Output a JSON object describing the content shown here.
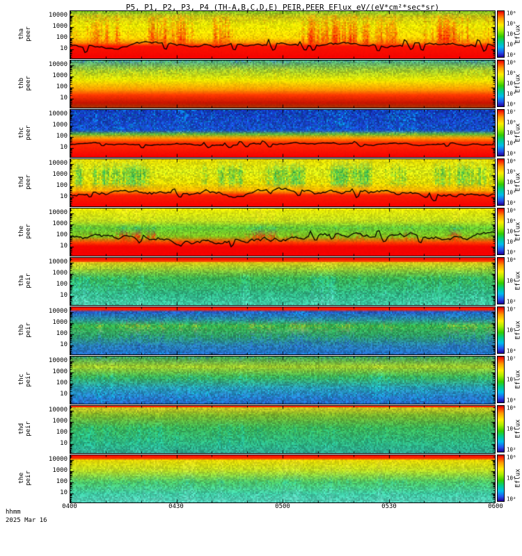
{
  "title": "P5, P1, P2, P3, P4 (TH-A,B,C,D,E) PEIR,PEER EFlux eV/(eV*cm²*sec*sr)",
  "colorbar_label": "Eflux",
  "yaxis": {
    "ticks": [
      "10000",
      "1000",
      "100",
      "10"
    ]
  },
  "xaxis": {
    "label": "hhmm",
    "date": "2025 Mar 16",
    "ticks": [
      "0400",
      "0430",
      "0500",
      "0530",
      "0600"
    ]
  },
  "panels": [
    {
      "probe": "tha",
      "instrument": "peer",
      "cb_ticks": [
        "10⁶",
        "10⁵",
        "10⁴",
        "10³",
        "10²"
      ],
      "render": {
        "stops": [
          [
            0.0,
            "#7fbf1f",
            "#d9e864",
            0.55,
            0.25
          ],
          [
            0.1,
            "#c9c914",
            "#ff7a00",
            0.45,
            0.35
          ],
          [
            0.3,
            "#ebeb00",
            "#ff3c00",
            0.3,
            0.55
          ],
          [
            0.55,
            "#ffd900",
            "#ff2000",
            0.35,
            0.85
          ],
          [
            0.66,
            "#ff8c00",
            "#ff0f00",
            0.28,
            0.7
          ],
          [
            0.72,
            "#fa1400",
            "#e00000",
            0.06,
            0.0
          ],
          [
            1.0,
            "#f50000",
            "#d90000",
            0.05,
            0.0
          ]
        ],
        "line": {
          "f": 0.72,
          "amp": 0.8,
          "spk": 0.13
        }
      }
    },
    {
      "probe": "thb",
      "instrument": "peer",
      "cb_ticks": [
        "10⁶",
        "10⁵",
        "10⁴",
        "10³",
        "10²"
      ],
      "render": {
        "stops": [
          [
            0.0,
            "#4faf78",
            "#2b66dd",
            0.6,
            0.25
          ],
          [
            0.2,
            "#9cc92e",
            "#ffe800",
            0.5,
            0.25
          ],
          [
            0.4,
            "#ebeb00",
            "#ffc800",
            0.22,
            0.12
          ],
          [
            0.6,
            "#ff9e00",
            "#ff5a00",
            0.16,
            0.1
          ],
          [
            0.72,
            "#ff3700",
            "#cc1400",
            0.1,
            0.0
          ],
          [
            0.88,
            "#c81400",
            "#961000",
            0.1,
            0.0
          ],
          [
            1.0,
            "#a03c00",
            "#6e2d00",
            0.16,
            0.0
          ]
        ]
      }
    },
    {
      "probe": "thc",
      "instrument": "peer",
      "cb_ticks": [
        "10⁷",
        "10⁶",
        "10⁵",
        "10⁴",
        "10³"
      ],
      "render": {
        "stops": [
          [
            0.0,
            "#1433b4",
            "#00c3ff",
            0.62,
            0.22
          ],
          [
            0.42,
            "#1946c8",
            "#00b4e6",
            0.62,
            0.22
          ],
          [
            0.5,
            "#55b43c",
            "#ffe600",
            0.42,
            0.22
          ],
          [
            0.58,
            "#ff9b00",
            "#ffcd00",
            0.2,
            0.12
          ],
          [
            0.68,
            "#ff2d00",
            "#e61400",
            0.08,
            0.0
          ],
          [
            1.0,
            "#f50000",
            "#d90000",
            0.05,
            0.0
          ]
        ],
        "line": {
          "f": 0.73,
          "amp": 0.45,
          "spk": 0.06
        }
      }
    },
    {
      "probe": "thd",
      "instrument": "peer",
      "cb_ticks": [
        "10⁶",
        "10⁵",
        "10⁴",
        "10³",
        "10²"
      ],
      "render": {
        "stops": [
          [
            0.0,
            "#e6da00",
            "#cdeb46",
            0.3,
            0.22
          ],
          [
            0.25,
            "#dceb14",
            "#2fb450",
            0.45,
            0.75
          ],
          [
            0.5,
            "#e6da00",
            "#41c85f",
            0.4,
            0.7
          ],
          [
            0.65,
            "#ffb900",
            "#ff6400",
            0.26,
            0.32
          ],
          [
            0.75,
            "#fa1e00",
            "#e60000",
            0.06,
            0.0
          ],
          [
            1.0,
            "#f50000",
            "#d90000",
            0.05,
            0.0
          ]
        ],
        "line": {
          "f": 0.72,
          "amp": 1.2,
          "spk": 0.1
        }
      }
    },
    {
      "probe": "the",
      "instrument": "peer",
      "cb_ticks": [
        "10⁶",
        "10⁵",
        "10⁴",
        "10³",
        "10²"
      ],
      "render": {
        "stops": [
          [
            0.0,
            "#ebeb00",
            "#ffe95f",
            0.26,
            0.16
          ],
          [
            0.25,
            "#bcdc20",
            "#ffe800",
            0.36,
            0.3
          ],
          [
            0.4,
            "#64c832",
            "#1eb482",
            0.5,
            0.5
          ],
          [
            0.58,
            "#85c81e",
            "#ff3000",
            0.45,
            0.75
          ],
          [
            0.7,
            "#ff4600",
            "#ff0a00",
            0.22,
            0.3
          ],
          [
            0.78,
            "#f50500",
            "#e00000",
            0.05,
            0.0
          ],
          [
            1.0,
            "#f50000",
            "#d90000",
            0.05,
            0.0
          ]
        ],
        "line": {
          "f": 0.63,
          "amp": 1.4,
          "spk": 0.12
        }
      }
    },
    {
      "probe": "tha",
      "instrument": "peir",
      "cb_ticks": [
        "10⁶",
        "10⁴",
        "10²"
      ],
      "render": {
        "stops": [
          [
            0.0,
            "#f51400",
            "#ff0000",
            0.04,
            0.0
          ],
          [
            0.05,
            "#fa2800",
            "#ff0000",
            0.05,
            0.0
          ],
          [
            0.09,
            "#d7c814",
            "#ffe846",
            0.32,
            0.3
          ],
          [
            0.2,
            "#9cc92e",
            "#dcea20",
            0.45,
            0.5
          ],
          [
            0.42,
            "#3cb450",
            "#1ec8a0",
            0.55,
            0.6
          ],
          [
            0.75,
            "#2eb482",
            "#50d7c3",
            0.55,
            0.5
          ],
          [
            1.0,
            "#3cc8a5",
            "#82e6d2",
            0.5,
            0.4
          ]
        ]
      }
    },
    {
      "probe": "thb",
      "instrument": "peir",
      "cb_ticks": [
        "10⁷",
        "10⁵",
        "10³"
      ],
      "render": {
        "stops": [
          [
            0.0,
            "#f51400",
            "#ff0000",
            0.04,
            0.0
          ],
          [
            0.04,
            "#fa2800",
            "#ff0000",
            0.05,
            0.0
          ],
          [
            0.08,
            "#2850c8",
            "#00b4e6",
            0.62,
            0.3
          ],
          [
            0.25,
            "#289b96",
            "#2855c8",
            0.58,
            0.3
          ],
          [
            0.38,
            "#32b450",
            "#c8c81e",
            0.5,
            0.45
          ],
          [
            0.6,
            "#2da064",
            "#2884c8",
            0.56,
            0.4
          ],
          [
            0.8,
            "#2884b4",
            "#2852c8",
            0.56,
            0.3
          ],
          [
            1.0,
            "#2866c8",
            "#00a5dc",
            0.55,
            0.3
          ]
        ]
      }
    },
    {
      "probe": "thc",
      "instrument": "peir",
      "cb_ticks": [
        "10⁷",
        "10⁵",
        "10³"
      ],
      "render": {
        "stops": [
          [
            0.0,
            "#41a550",
            "#2873c8",
            0.56,
            0.3
          ],
          [
            0.2,
            "#9bc82d",
            "#dcea1e",
            0.46,
            0.4
          ],
          [
            0.42,
            "#3cb455",
            "#1ec8b4",
            0.52,
            0.42
          ],
          [
            0.65,
            "#2896b4",
            "#1ed7cd",
            0.55,
            0.32
          ],
          [
            0.85,
            "#2878c8",
            "#00c8e6",
            0.55,
            0.3
          ],
          [
            1.0,
            "#2864c8",
            "#00b4e6",
            0.52,
            0.3
          ]
        ]
      }
    },
    {
      "probe": "thd",
      "instrument": "peir",
      "cb_ticks": [
        "10⁶",
        "10⁴",
        "10²"
      ],
      "render": {
        "stops": [
          [
            0.0,
            "#fa2300",
            "#ff0000",
            0.05,
            0.0
          ],
          [
            0.03,
            "#c8c81e",
            "#e6d732",
            0.36,
            0.3
          ],
          [
            0.18,
            "#78b42d",
            "#a5c81e",
            0.46,
            0.42
          ],
          [
            0.45,
            "#3cb455",
            "#1ec896",
            0.5,
            0.5
          ],
          [
            0.8,
            "#2eb482",
            "#1ec8b4",
            0.5,
            0.4
          ],
          [
            1.0,
            "#2da592",
            "#50c8b4",
            0.5,
            0.32
          ]
        ]
      }
    },
    {
      "probe": "the",
      "instrument": "peir",
      "cb_ticks": [
        "10⁶",
        "10⁴",
        "10²"
      ],
      "render": {
        "stops": [
          [
            0.0,
            "#f51400",
            "#ff0000",
            0.04,
            0.0
          ],
          [
            0.05,
            "#fa2800",
            "#ff0000",
            0.05,
            0.0
          ],
          [
            0.09,
            "#e6d700",
            "#ffe846",
            0.26,
            0.22
          ],
          [
            0.3,
            "#bcdc20",
            "#dcea46",
            0.36,
            0.32
          ],
          [
            0.55,
            "#50c864",
            "#2dc8a0",
            0.46,
            0.4
          ],
          [
            0.8,
            "#3cc8a0",
            "#6edccd",
            0.46,
            0.32
          ],
          [
            1.0,
            "#50c8b4",
            "#87e6d7",
            0.42,
            0.3
          ]
        ]
      }
    }
  ],
  "chart_data": {
    "type": "heatmap",
    "subtype": "energy-time spectrograms, 10 stacked panels (THEMIS ESA electron PEER / ion PEIR)",
    "title": "P5, P1, P2, P3, P4 (TH-A,B,C,D,E) PEIR,PEER EFlux eV/(eV*cm²*sec*sr)",
    "n_panels": 10,
    "x_axis": {
      "label": "hhmm",
      "date": "2025 Mar 16",
      "start": "0400",
      "end": "0600",
      "major_ticks": [
        "0400",
        "0430",
        "0500",
        "0530",
        "0600"
      ],
      "minor_tick_interval_min": 10
    },
    "y_axis": {
      "scale": "log",
      "units": "eV",
      "tick_labels": [
        10000,
        1000,
        100,
        10
      ],
      "approx_range": [
        5,
        30000
      ]
    },
    "z_axis": {
      "label": "Eflux",
      "units": "eV/(eV*cm²*sec*sr)",
      "scale": "log",
      "colormap": "rainbow (red=high flux, blue=low flux)"
    },
    "panels": [
      {
        "index": 1,
        "name": "tha peer",
        "z_range": [
          100,
          1000000
        ],
        "features": [
          "solid red saturation ~10^5-10^6 below ~60 eV",
          "yellow ~10^4-10^5 from ~100 eV to ~3 keV with frequent red burst columns",
          "green/yellow speckle ~10^3 above ~5 keV",
          "black spacecraft-potential trace with sharp dips on top of the red band"
        ]
      },
      {
        "index": 2,
        "name": "thb peer",
        "z_range": [
          100,
          1000000
        ],
        "features": [
          "orange-red band ~10^5 between ~40-300 eV",
          "yellow ~10^4 up to ~2 keV",
          "blue/green speckle ~10^2-10^3 above ~3 keV",
          "dark-red/brown low-flux strip at the lowest energies"
        ]
      },
      {
        "index": 3,
        "name": "thc peer",
        "z_range": [
          1000,
          10000000
        ],
        "features": [
          "saturated red below ~80 eV",
          "orange ~10^5-10^6 band ~100-600 eV",
          "dense dark-blue speckle above ~1 keV",
          "flat black potential trace near ~60 eV"
        ]
      },
      {
        "index": 4,
        "name": "thd peer",
        "z_range": [
          100,
          1000000
        ],
        "features": [
          "broad yellow ~10^4-10^5 from ~100 eV to 10 keV",
          "green vertical dropout streaks at mid energies",
          "saturated red below ~40 eV",
          "strongly wavy black potential trace 15-80 eV"
        ]
      },
      {
        "index": 5,
        "name": "the peer",
        "z_range": [
          100,
          1000000
        ],
        "features": [
          "yellow ~10^4-10^5 above ~1 keV",
          "green band ~10^3-10^4 between ~100-1000 eV",
          "red bursts extending up from the saturated band below ~40 eV",
          "wavy black potential trace ~30-150 eV"
        ]
      },
      {
        "index": 6,
        "name": "tha peir",
        "z_range": [
          100,
          1000000
        ],
        "features": [
          "thin saturated red band at the top of the energy range (~20-25 keV)",
          "yellow ~10^5 near 10-20 keV",
          "green speckle ~10^3-10^4 over 0.05-5 keV with vertical streaking",
          "cyan at the lowest energies"
        ]
      },
      {
        "index": 7,
        "name": "thb peir",
        "z_range": [
          100,
          10000000
        ],
        "features": [
          "thin saturated red band at maximum energies",
          "dark-blue speckle ~10^2 from ~8-20 keV",
          "green ~10^3-10^4 from ~0.1-5 keV with faint yellow patches before ~0430",
          "blue speckle at the lowest energies"
        ]
      },
      {
        "index": 8,
        "name": "thc peir",
        "z_range": [
          100,
          10000000
        ],
        "features": [
          "yellow-green band ~10^4-10^5 near 2-8 keV",
          "green speckle ~10^3-10^4 at mid energies",
          "cyan/blue speckle ~10^2-10^3 below ~100 eV"
        ]
      },
      {
        "index": 9,
        "name": "thd peir",
        "z_range": [
          100,
          1000000
        ],
        "features": [
          "thin red line at top energies",
          "yellow-green ~10^4 band ~5-20 keV",
          "uniform green speckle ~10^3-10^4 below",
          "slightly brighter cyan at the lowest energies"
        ]
      },
      {
        "index": 10,
        "name": "the peir",
        "z_range": [
          100,
          1000000
        ],
        "features": [
          "thin saturated red band at top energies",
          "yellow ~10^4-10^5 band ~8-25 keV",
          "green ~10^3-10^4 at mid energies",
          "cyan-green at the lowest energies"
        ]
      }
    ]
  }
}
